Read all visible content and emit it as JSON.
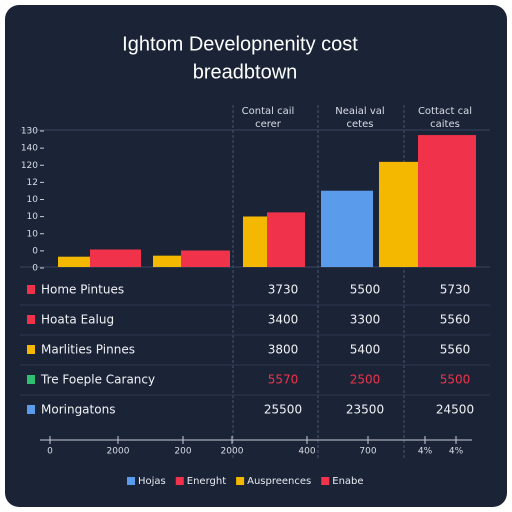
{
  "title_lines": [
    "Ightom Developnenity cost",
    "breadbtown"
  ],
  "column_headers": [
    [
      "Contal cail",
      "cerer"
    ],
    [
      "Neaial val",
      "cetes"
    ],
    [
      "Cottact cal",
      "caites"
    ]
  ],
  "y_labels": [
    "130",
    "140",
    "120",
    "12",
    "10",
    "10",
    "10",
    "0",
    "0"
  ],
  "ylim": [
    0,
    130
  ],
  "bars": [
    {
      "color": "#f5b800",
      "value": 10
    },
    {
      "color": "#f0334a",
      "value": 17
    },
    {
      "color": "#f5b800",
      "value": 11
    },
    {
      "color": "#f0334a",
      "value": 16
    },
    {
      "color": "#f5b800",
      "value": 49
    },
    {
      "color": "#f0334a",
      "value": 53
    },
    {
      "color": "#5b9bec",
      "value": 74
    },
    {
      "color": "#f5b800",
      "value": 102
    },
    {
      "color": "#f0334a",
      "value": 128
    }
  ],
  "table": {
    "rows": [
      {
        "color": "#f0334a",
        "name": "Home Pintues",
        "cells": [
          "3730",
          "5500",
          "5730"
        ],
        "cell_color": "#f0f2f6"
      },
      {
        "color": "#f0334a",
        "name": "Hoata Ealug",
        "cells": [
          "3400",
          "3300",
          "5560"
        ],
        "cell_color": "#f0f2f6"
      },
      {
        "color": "#f5b800",
        "name": "Marlities Pinnes",
        "cells": [
          "3800",
          "5400",
          "5560"
        ],
        "cell_color": "#f0f2f6"
      },
      {
        "color": "#2fbf71",
        "name": "Tre Foeple Carancy",
        "cells": [
          "5570",
          "2500",
          "5500"
        ],
        "cell_color": "#f0334a"
      },
      {
        "color": "#5b9bec",
        "name": "Moringatons",
        "cells": [
          "25500",
          "23500",
          "24500"
        ],
        "cell_color": "#f0f2f6"
      }
    ]
  },
  "x_labels": [
    "0",
    "2000",
    "200",
    "2000",
    "400",
    "700",
    "4%",
    "4%"
  ],
  "legend": [
    {
      "name": "Hojas",
      "color": "#5b9bec"
    },
    {
      "name": "Energht",
      "color": "#f0334a"
    },
    {
      "name": "Auspreences",
      "color": "#f5b800"
    },
    {
      "name": "Enabe",
      "color": "#f0334a"
    }
  ]
}
